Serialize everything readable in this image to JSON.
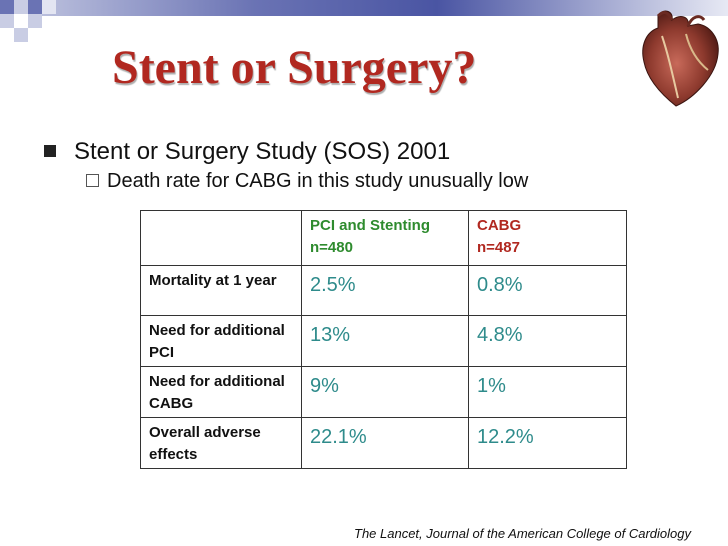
{
  "slide": {
    "title": "Stent or Surgery?",
    "bullets": [
      {
        "text": "Stent or Surgery Study (SOS) 2001",
        "level": 1
      },
      {
        "text": "Death rate for CABG in this study unusually low",
        "level": 2
      }
    ],
    "table": {
      "headers": [
        {
          "line1": "",
          "line2": ""
        },
        {
          "line1": "PCI and Stenting",
          "line2": "n=480"
        },
        {
          "line1": "CABG",
          "line2": "n=487"
        }
      ],
      "rows": [
        {
          "label": "Mortality at 1 year",
          "pci": "2.5%",
          "cabg": "0.8%"
        },
        {
          "label": "Need for additional PCI",
          "pci": "13%",
          "cabg": "4.8%"
        },
        {
          "label": "Need for additional CABG",
          "pci": "9%",
          "cabg": "1%"
        },
        {
          "label": "Overall adverse effects",
          "pci": "22.1%",
          "cabg": "12.2%"
        }
      ]
    },
    "citation": "The Lancet, Journal of the American College of Cardiology",
    "colors": {
      "title": "#b12820",
      "pci_header": "#2e8b2e",
      "cabg_header": "#b12820",
      "values": "#2e8b8b",
      "band": "#4a55a3"
    },
    "icons": [
      "heart-illustration",
      "decorative-squares"
    ]
  }
}
